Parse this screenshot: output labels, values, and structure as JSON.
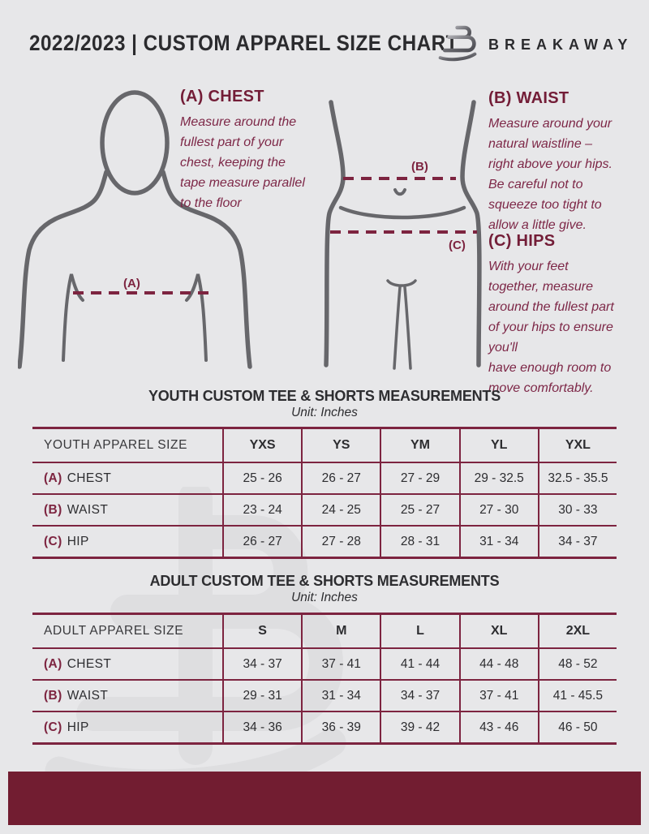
{
  "header": {
    "title": "2022/2023  |  CUSTOM APPAREL SIZE CHART",
    "brand": "BREAKAWAY"
  },
  "colors": {
    "accent_maroon": "#731d37",
    "table_line": "#7d2440",
    "footer_bar": "#721d31",
    "background": "#e7e7e9",
    "figure_gray": "#67676b"
  },
  "guide": {
    "chest": {
      "heading": "(A) CHEST",
      "marker": "(A)",
      "text": "Measure around the\nfullest part of your\nchest, keeping the\ntape measure parallel\nto the floor"
    },
    "waist": {
      "heading": "(B) WAIST",
      "marker": "(B)",
      "text": "Measure around your\nnatural waistline –\nright above your hips.\nBe careful not to\nsqueeze too tight to\nallow a little give."
    },
    "hips": {
      "heading": "(C) HIPS",
      "marker": "(C)",
      "text": "With your feet\ntogether, measure\naround the fullest part\nof your hips to ensure\nyou'll\nhave enough room to\nmove comfortably."
    }
  },
  "youth_table": {
    "title": "YOUTH CUSTOM TEE & SHORTS MEASUREMENTS",
    "unit": "Unit: Inches",
    "size_label": "YOUTH APPAREL SIZE",
    "columns": [
      "YXS",
      "YS",
      "YM",
      "YL",
      "YXL"
    ],
    "rows": [
      {
        "key": "(A)",
        "name": "CHEST",
        "values": [
          "25 - 26",
          "26 - 27",
          "27 - 29",
          "29 - 32.5",
          "32.5 - 35.5"
        ]
      },
      {
        "key": "(B)",
        "name": "WAIST",
        "values": [
          "23 - 24",
          "24 - 25",
          "25 - 27",
          "27 - 30",
          "30 - 33"
        ]
      },
      {
        "key": "(C)",
        "name": "HIP",
        "values": [
          "26 - 27",
          "27 - 28",
          "28 - 31",
          "31 - 34",
          "34 - 37"
        ]
      }
    ]
  },
  "adult_table": {
    "title": "ADULT CUSTOM TEE & SHORTS MEASUREMENTS",
    "unit": "Unit: Inches",
    "size_label": "ADULT APPAREL SIZE",
    "columns": [
      "S",
      "M",
      "L",
      "XL",
      "2XL"
    ],
    "rows": [
      {
        "key": "(A)",
        "name": "CHEST",
        "values": [
          "34 - 37",
          "37 - 41",
          "41 - 44",
          "44 - 48",
          "48 - 52"
        ]
      },
      {
        "key": "(B)",
        "name": "WAIST",
        "values": [
          "29 - 31",
          "31 - 34",
          "34 - 37",
          "37 - 41",
          "41 - 45.5"
        ]
      },
      {
        "key": "(C)",
        "name": "HIP",
        "values": [
          "34 - 36",
          "36 - 39",
          "39 - 42",
          "43 - 46",
          "46 - 50"
        ]
      }
    ]
  }
}
